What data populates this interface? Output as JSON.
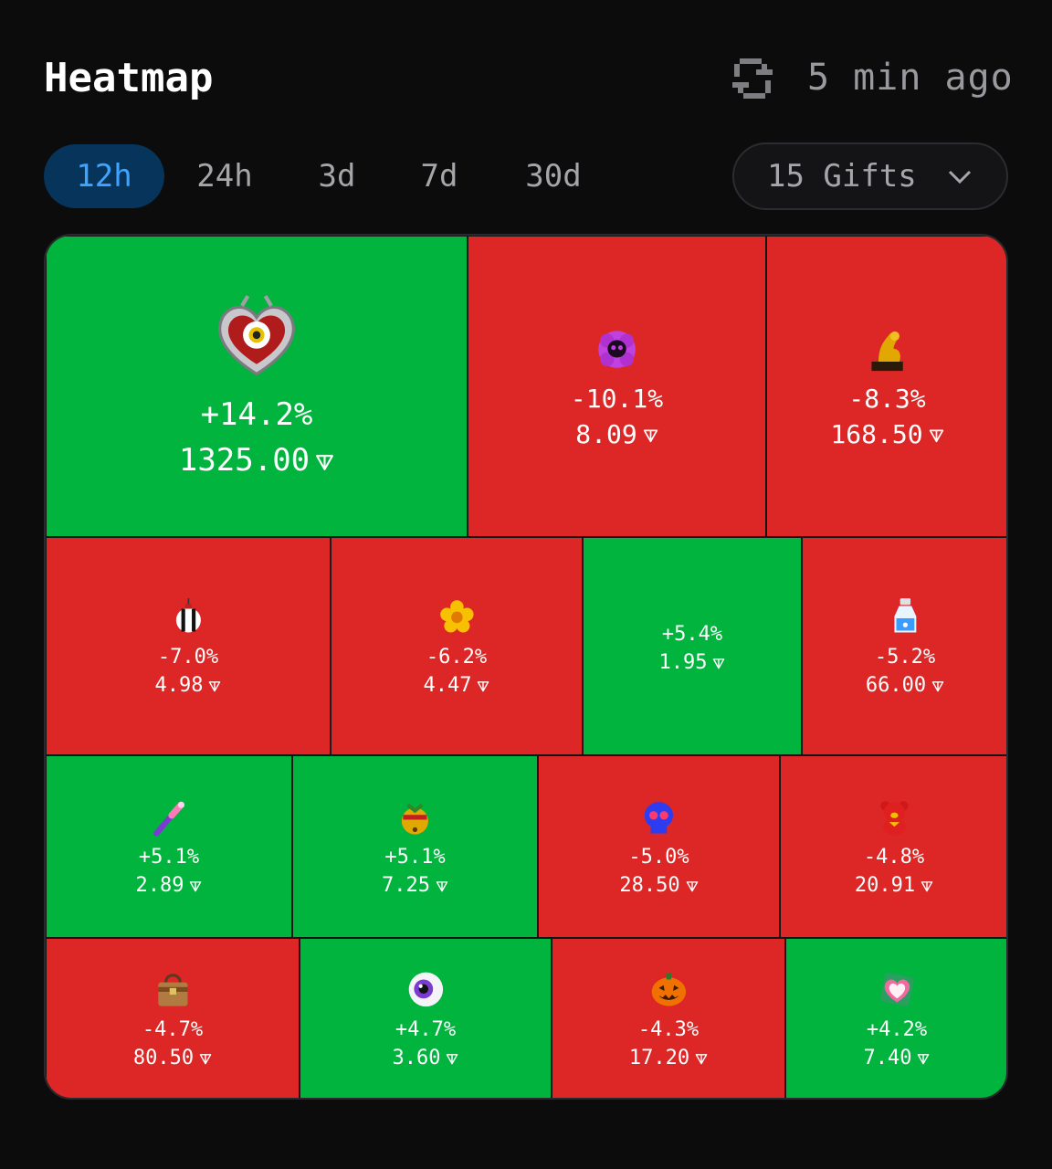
{
  "header": {
    "title": "Heatmap",
    "updated": "5 min ago"
  },
  "tabs": [
    {
      "label": "12h",
      "active": true
    },
    {
      "label": "24h",
      "active": false
    },
    {
      "label": "3d",
      "active": false
    },
    {
      "label": "7d",
      "active": false
    },
    {
      "label": "30d",
      "active": false
    }
  ],
  "gift_filter": {
    "label": "15 Gifts"
  },
  "colors": {
    "up": "#00b43e",
    "down": "#dd2626",
    "accent": "#3fa3ff"
  },
  "cells": [
    {
      "icon": "heart-eye-locket-icon",
      "change": "+14.2%",
      "price": "1325.00",
      "direction": "up"
    },
    {
      "icon": "purple-skull-flower-icon",
      "change": "-10.1%",
      "price": "8.09",
      "direction": "down"
    },
    {
      "icon": "golden-arm-trophy-icon",
      "change": "-8.3%",
      "price": "168.50",
      "direction": "down"
    },
    {
      "icon": "striped-ornament-icon",
      "change": "-7.0%",
      "price": "4.98",
      "direction": "down"
    },
    {
      "icon": "yellow-flower-icon",
      "change": "-6.2%",
      "price": "4.47",
      "direction": "down"
    },
    {
      "icon": "",
      "change": "+5.4%",
      "price": "1.95",
      "direction": "up"
    },
    {
      "icon": "potion-bottle-icon",
      "change": "-5.2%",
      "price": "66.00",
      "direction": "down"
    },
    {
      "icon": "magic-wand-icon",
      "change": "+5.1%",
      "price": "2.89",
      "direction": "up"
    },
    {
      "icon": "jingle-bell-icon",
      "change": "+5.1%",
      "price": "7.25",
      "direction": "up"
    },
    {
      "icon": "blue-skull-icon",
      "change": "-5.0%",
      "price": "28.50",
      "direction": "down"
    },
    {
      "icon": "red-teddy-bear-icon",
      "change": "-4.8%",
      "price": "20.91",
      "direction": "down"
    },
    {
      "icon": "leather-handbag-icon",
      "change": "-4.7%",
      "price": "80.50",
      "direction": "down"
    },
    {
      "icon": "eyeball-icon",
      "change": "+4.7%",
      "price": "3.60",
      "direction": "up"
    },
    {
      "icon": "jack-o-lantern-icon",
      "change": "-4.3%",
      "price": "17.20",
      "direction": "down"
    },
    {
      "icon": "heart-box-icon",
      "change": "+4.2%",
      "price": "7.40",
      "direction": "up"
    }
  ]
}
